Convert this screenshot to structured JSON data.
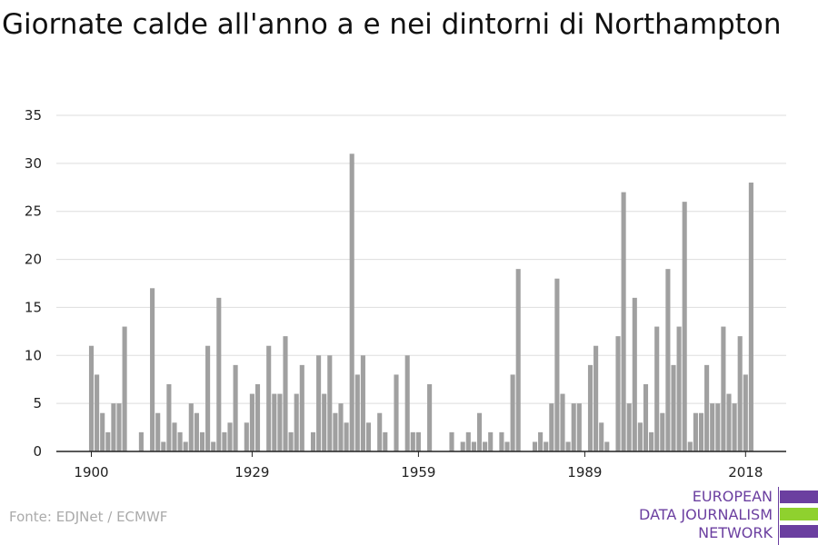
{
  "title": "Giornate calde all'anno a e nei dintorni di Northampton",
  "source": "Fonte: EDJNet / ECMWF",
  "logo": {
    "lines": [
      "EUROPEAN",
      "DATA JOURNALISM",
      "NETWORK"
    ],
    "colors": {
      "text": "#6b3fa0",
      "bar_top": "#6b3fa0",
      "bar_middle": "#8fd12e",
      "bar_bottom": "#6b3fa0"
    }
  },
  "chart_data": {
    "type": "bar",
    "title": "Giornate calde all'anno a e nei dintorni di Northampton",
    "xlabel": "",
    "ylabel": "",
    "x_start": 1900,
    "x_end": 2018,
    "x_ticks": [
      1900,
      1929,
      1959,
      1989,
      2018
    ],
    "y_ticks": [
      0,
      5,
      10,
      15,
      20,
      25,
      30,
      35
    ],
    "ylim": [
      0,
      35
    ],
    "grid": true,
    "bar_color": "#a0a0a0",
    "values": [
      11,
      8,
      4,
      2,
      5,
      5,
      13,
      0,
      0,
      2,
      0,
      17,
      4,
      1,
      7,
      3,
      2,
      1,
      5,
      4,
      2,
      11,
      1,
      16,
      2,
      3,
      9,
      0,
      3,
      6,
      7,
      0,
      11,
      6,
      6,
      12,
      2,
      6,
      9,
      0,
      2,
      10,
      6,
      10,
      4,
      5,
      3,
      31,
      8,
      10,
      3,
      0,
      4,
      2,
      0,
      8,
      0,
      10,
      2,
      2,
      0,
      7,
      0,
      0,
      0,
      2,
      0,
      1,
      2,
      1,
      4,
      1,
      2,
      0,
      2,
      1,
      8,
      19,
      0,
      0,
      1,
      2,
      1,
      5,
      18,
      6,
      1,
      5,
      5,
      0,
      9,
      11,
      3,
      1,
      0,
      12,
      27,
      5,
      16,
      3,
      7,
      2,
      13,
      4,
      19,
      9,
      13,
      26,
      1,
      4,
      4,
      9,
      5,
      5,
      13,
      6,
      5,
      12,
      8,
      28
    ]
  }
}
